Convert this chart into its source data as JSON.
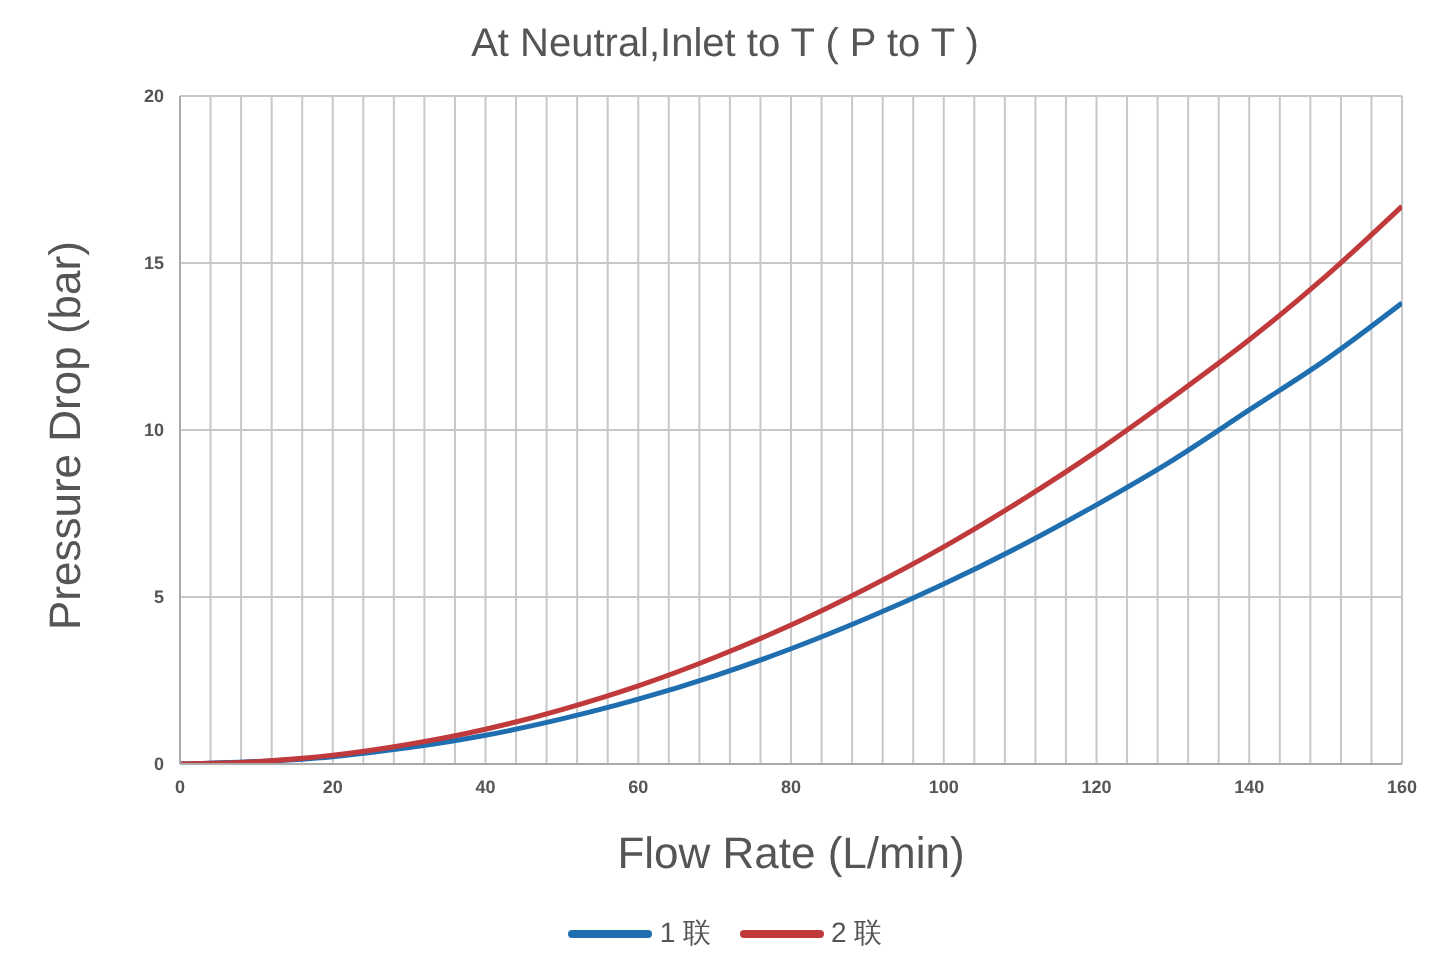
{
  "chart_data": {
    "type": "line",
    "title": "At Neutral,Inlet to T ( P to T )",
    "xlabel": "Flow Rate (L/min)",
    "ylabel": "Pressure Drop (bar)",
    "x": [
      0,
      10,
      20,
      30,
      40,
      50,
      60,
      70,
      80,
      90,
      100,
      110,
      120,
      130,
      140,
      150,
      160
    ],
    "series": [
      {
        "name": "1 联",
        "color": "#1f6fb0",
        "values": [
          0,
          null,
          0.22,
          0.49,
          0.86,
          1.35,
          1.94,
          2.64,
          3.45,
          4.37,
          5.39,
          6.52,
          7.76,
          9.1,
          10.6,
          12.1,
          13.8
        ]
      },
      {
        "name": "2 联",
        "color": "#c0393b",
        "values": [
          0,
          0.07,
          0.26,
          0.59,
          1.04,
          1.63,
          2.34,
          3.19,
          4.16,
          5.27,
          6.5,
          7.87,
          9.36,
          10.99,
          12.7,
          14.6,
          16.7
        ]
      }
    ],
    "xlim": [
      0,
      160
    ],
    "xticks": [
      0,
      {
        "value": 4,
        "label": null
      },
      {
        "value": 8,
        "label": null
      },
      {
        "value": 12,
        "label": null
      },
      {
        "value": 16,
        "label": null
      },
      20,
      {
        "value": 24,
        "label": null
      },
      {
        "value": 28,
        "label": null
      },
      {
        "value": 32,
        "label": null
      },
      {
        "value": 36,
        "label": null
      },
      40,
      {
        "value": 44,
        "label": null
      },
      {
        "value": 48,
        "label": null
      },
      {
        "value": 52,
        "label": null
      },
      {
        "value": 56,
        "label": null
      },
      60,
      {
        "value": 64,
        "label": null
      },
      {
        "value": 68,
        "label": null
      },
      {
        "value": 72,
        "label": null
      },
      {
        "value": 76,
        "label": null
      },
      80,
      {
        "value": 84,
        "label": null
      },
      {
        "value": 88,
        "label": null
      },
      {
        "value": 92,
        "label": null
      },
      {
        "value": 96,
        "label": null
      },
      100,
      {
        "value": 104,
        "label": null
      },
      {
        "value": 108,
        "label": null
      },
      {
        "value": 112,
        "label": null
      },
      {
        "value": 116,
        "label": null
      },
      120,
      {
        "value": 124,
        "label": null
      },
      {
        "value": 128,
        "label": null
      },
      {
        "value": 132,
        "label": null
      },
      {
        "value": 136,
        "label": null
      },
      140,
      {
        "value": 144,
        "label": null
      },
      {
        "value": 148,
        "label": null
      },
      {
        "value": 152,
        "label": null
      },
      {
        "value": 156,
        "label": null
      },
      160
    ],
    "ylim": [
      0,
      20
    ],
    "yticks": [
      0,
      5,
      10,
      15,
      20
    ],
    "grid": true,
    "legend": "bottom",
    "marker": "none",
    "line_style": "solid"
  }
}
